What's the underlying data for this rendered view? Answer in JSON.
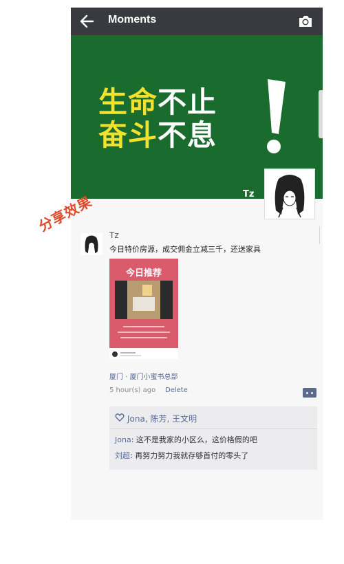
{
  "header": {
    "title": "Moments",
    "back_icon": "arrow-left-icon",
    "camera_icon": "camera-icon"
  },
  "cover": {
    "slogan_line1_yellow": "生命",
    "slogan_line1_white": "不止",
    "slogan_line2_yellow": "奋斗",
    "slogan_line2_white": "不息",
    "owner_name": "Tz",
    "bg_color": "#1a6b2e",
    "accent_color": "#f4e12d"
  },
  "stamp_text": "分享效果",
  "post": {
    "author": "Tz",
    "text": "今日特价房源，成交佣金立减三千，还送家具",
    "card_title": "今日推荐",
    "location": "厦门 · 厦门小蜜书总部",
    "time": "5 hour(s) ago",
    "delete_label": "Delete",
    "likes": "Jona, 陈芳, 王文明",
    "comments": [
      {
        "name": "Jona",
        "sep": ": ",
        "text": "这不是我家的小区么，这价格假的吧"
      },
      {
        "name": "刘超",
        "sep": ": ",
        "text": "再努力努力我就存够首付的零头了"
      }
    ]
  },
  "colors": {
    "topbar": "#393a3f",
    "link": "#576b95",
    "stamp": "#e04b2b",
    "card": "#d95b6c"
  }
}
